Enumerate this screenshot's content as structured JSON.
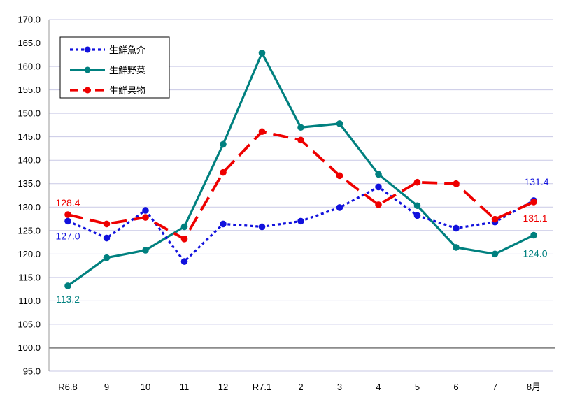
{
  "chart_data": {
    "type": "line",
    "categories": [
      "R6.8",
      "9",
      "10",
      "11",
      "12",
      "R7.1",
      "2",
      "3",
      "4",
      "5",
      "6",
      "7",
      "8月"
    ],
    "ylim": [
      95,
      170
    ],
    "yticks": [
      "95.0",
      "100.0",
      "105.0",
      "110.0",
      "115.0",
      "120.0",
      "125.0",
      "130.0",
      "135.0",
      "140.0",
      "145.0",
      "150.0",
      "155.0",
      "160.0",
      "165.0",
      "170.0"
    ],
    "reference_line": 100,
    "grid": true,
    "legend_position": "top-left",
    "series": [
      {
        "name": "生鮮魚介",
        "color": "#1111dd",
        "line_style": "dotted",
        "values": [
          127.0,
          123.4,
          129.3,
          118.4,
          126.4,
          125.8,
          127.0,
          129.9,
          134.3,
          128.2,
          125.5,
          126.8,
          131.4
        ]
      },
      {
        "name": "生鮮野菜",
        "color": "#00807f",
        "line_style": "solid",
        "values": [
          113.2,
          119.2,
          120.8,
          125.8,
          143.4,
          162.9,
          147.0,
          147.8,
          137.0,
          130.3,
          121.4,
          120.0,
          124.0
        ]
      },
      {
        "name": "生鮮果物",
        "color": "#ee0000",
        "line_style": "dashed",
        "values": [
          128.4,
          126.4,
          127.8,
          123.2,
          137.4,
          146.1,
          144.3,
          136.7,
          130.5,
          135.3,
          135.0,
          127.4,
          131.1
        ]
      }
    ],
    "data_labels": [
      {
        "series": 0,
        "index": 0,
        "text": "127.0"
      },
      {
        "series": 0,
        "index": 12,
        "text": "131.4"
      },
      {
        "series": 1,
        "index": 0,
        "text": "113.2"
      },
      {
        "series": 1,
        "index": 12,
        "text": "124.0"
      },
      {
        "series": 2,
        "index": 0,
        "text": "128.4"
      },
      {
        "series": 2,
        "index": 12,
        "text": "131.1"
      }
    ]
  }
}
